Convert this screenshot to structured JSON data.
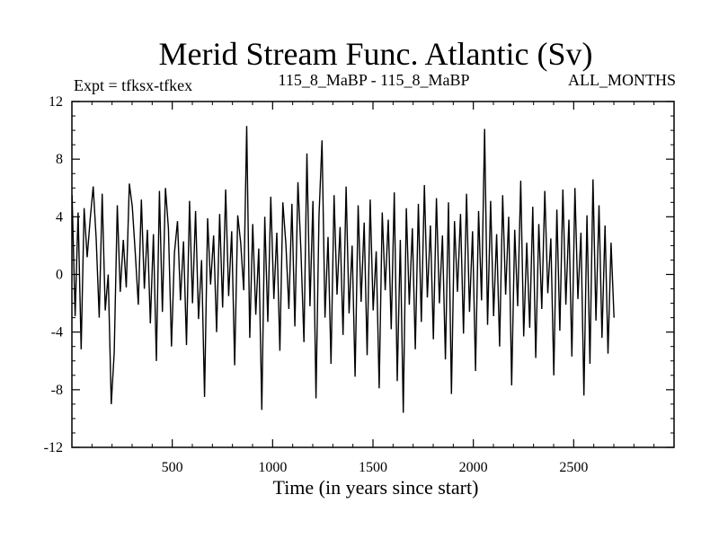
{
  "chart_data": {
    "type": "line",
    "title": "Merid Stream Func. Atlantic (Sv)",
    "subtitle_left": "Expt = tfksx-tfkex",
    "subtitle_center": "115_8_MaBP - 115_8_MaBP",
    "subtitle_right": "ALL_MONTHS",
    "xlabel": "Time (in years since start)",
    "ylabel": "",
    "xlim": [
      0,
      3000
    ],
    "ylim": [
      -12,
      12
    ],
    "x_ticks": [
      500,
      1000,
      1500,
      2000,
      2500
    ],
    "y_ticks": [
      -12,
      -8,
      -4,
      0,
      4,
      8,
      12
    ],
    "x_tick_labels": [
      "500",
      "1000",
      "1500",
      "2000",
      "2500"
    ],
    "y_tick_labels": [
      "-12",
      "-8",
      "-4",
      "0",
      "4",
      "8",
      "12"
    ],
    "grid": false,
    "series_color": "#000000",
    "series": [
      {
        "name": "",
        "x_start": 1,
        "x_step": 15,
        "values": [
          5.5,
          -2.9,
          4.3,
          -5.2,
          4.6,
          1.2,
          3.8,
          6.1,
          2.5,
          -3.0,
          5.6,
          -2.5,
          0.0,
          -9.0,
          -5.4,
          4.8,
          -1.2,
          2.4,
          -0.9,
          6.3,
          4.7,
          1.4,
          -2.1,
          5.2,
          -1.0,
          3.1,
          -3.4,
          2.8,
          -6.0,
          5.8,
          -2.6,
          6.0,
          3.2,
          -5.0,
          1.5,
          3.7,
          -1.8,
          2.3,
          -4.9,
          5.1,
          -2.0,
          4.4,
          -3.1,
          1.0,
          -8.5,
          3.9,
          -0.7,
          2.7,
          -4.0,
          4.2,
          -2.3,
          5.9,
          -1.5,
          3.0,
          -6.3,
          4.1,
          2.2,
          -1.1,
          10.3,
          -4.4,
          3.5,
          -2.8,
          1.8,
          -9.4,
          4.0,
          -3.3,
          5.4,
          -1.7,
          2.9,
          -5.3,
          5.0,
          2.1,
          -2.4,
          4.9,
          -3.6,
          6.4,
          1.7,
          -4.7,
          8.4,
          -2.2,
          5.1,
          -8.6,
          4.0,
          9.3,
          -3.0,
          2.6,
          -6.2,
          5.5,
          -1.4,
          3.3,
          -4.2,
          6.1,
          -2.7,
          2.0,
          -7.1,
          4.8,
          -1.9,
          3.6,
          -5.6,
          5.2,
          -2.5,
          1.6,
          -7.9,
          4.3,
          -1.1,
          3.8,
          -3.8,
          5.7,
          -7.4,
          2.4,
          -9.6,
          4.6,
          -2.1,
          3.2,
          -5.2,
          4.9,
          -3.3,
          6.2,
          -1.6,
          3.4,
          -4.5,
          5.3,
          -2.0,
          2.7,
          -5.9,
          5.0,
          -8.3,
          3.7,
          -1.2,
          4.2,
          -4.1,
          5.6,
          -2.6,
          3.0,
          -6.7,
          4.4,
          -1.8,
          10.1,
          -3.5,
          5.1,
          -2.9,
          2.8,
          -5.0,
          5.5,
          -1.4,
          4.0,
          -7.7,
          3.1,
          -2.2,
          6.5,
          -4.3,
          2.2,
          -3.7,
          4.7,
          -5.8,
          3.5,
          -2.4,
          5.8,
          -1.3,
          2.5,
          -7.0,
          4.5,
          -3.9,
          5.9,
          -2.1,
          3.8,
          -5.7,
          6.0,
          -1.7,
          2.9,
          -8.4,
          4.1,
          -6.2,
          6.6,
          -3.2,
          4.8,
          -4.4,
          3.4,
          -5.5,
          2.2,
          -3.0
        ]
      }
    ]
  }
}
